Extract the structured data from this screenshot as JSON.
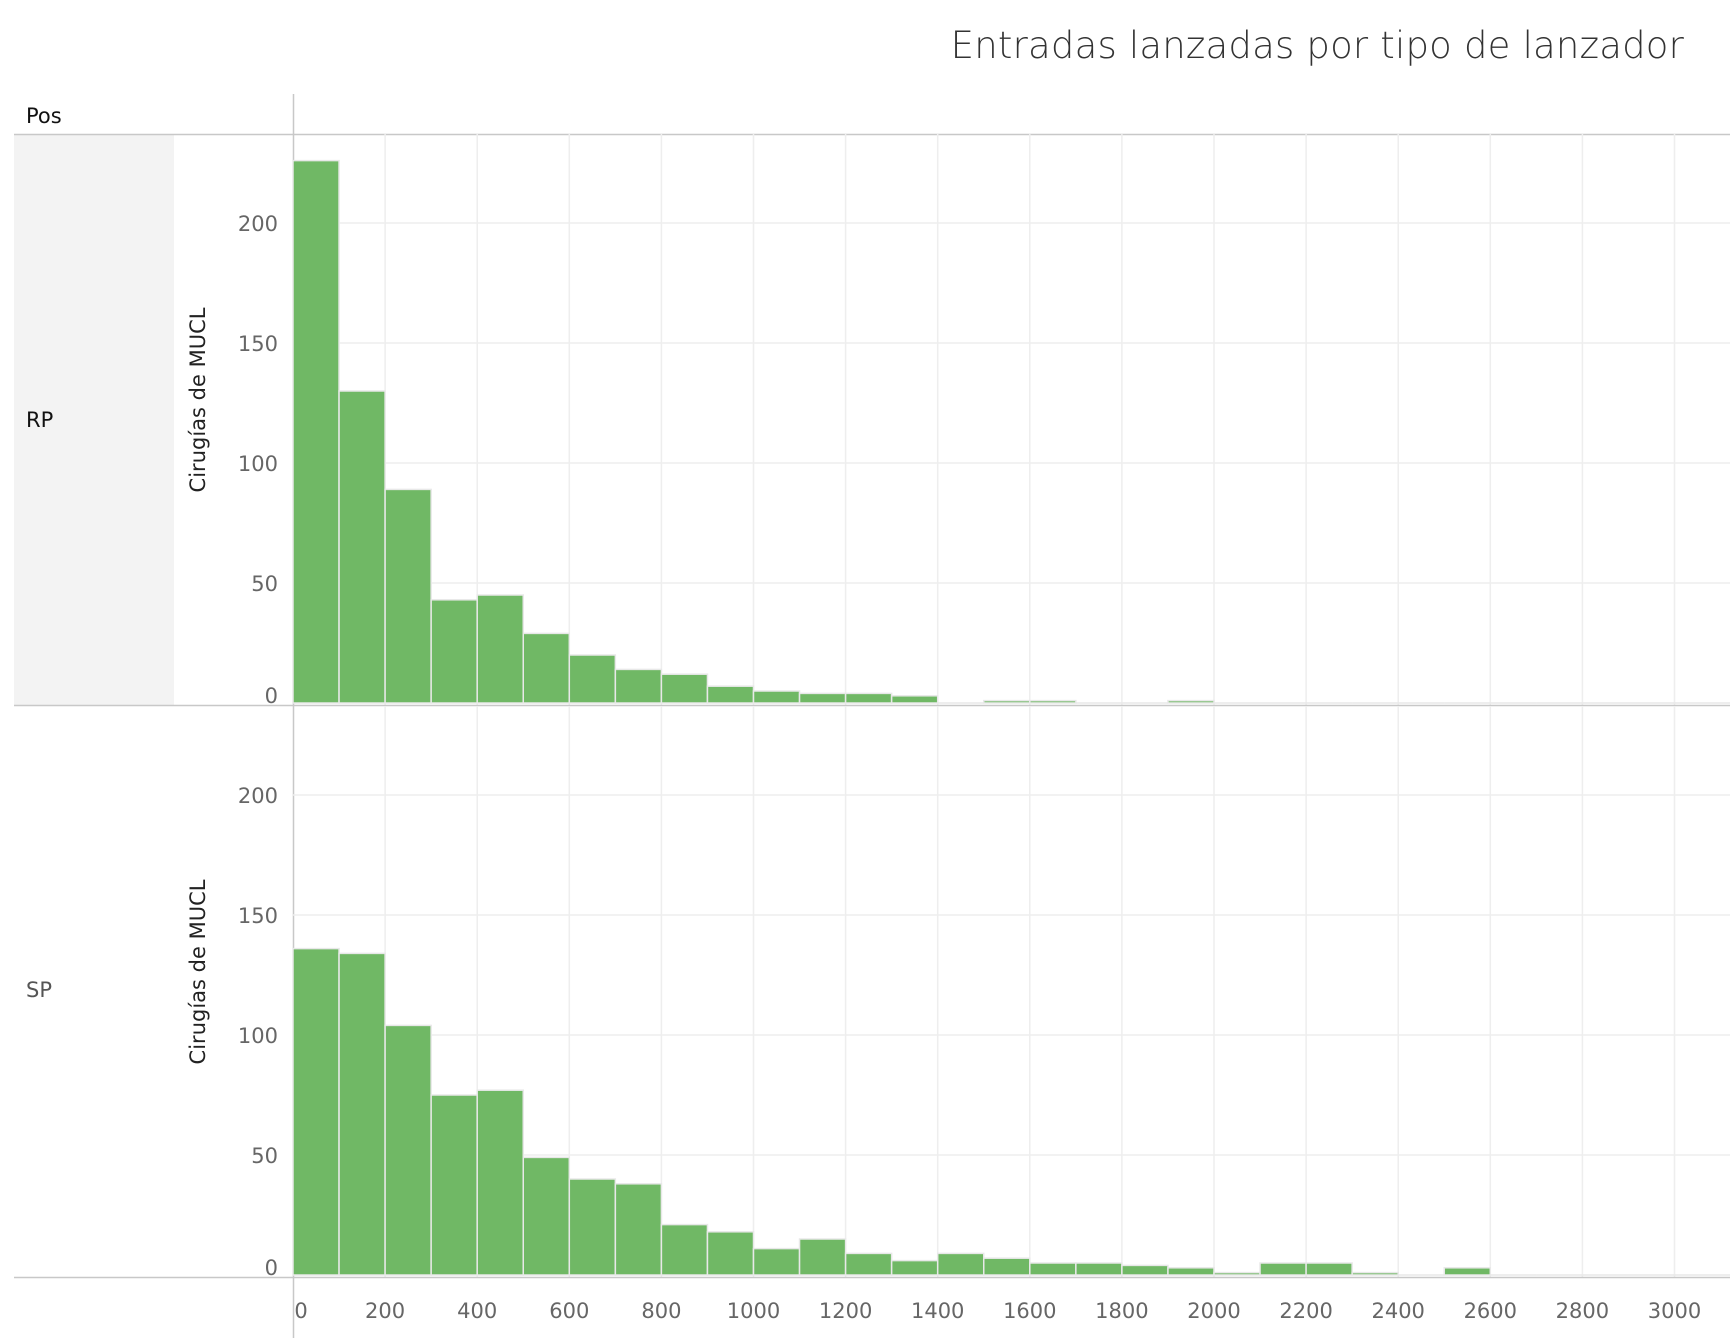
{
  "title": "Entradas lanzadas por tipo de lanzador",
  "row_header": "Pos",
  "colors": {
    "bar": "#70b865",
    "bar_edge": "#e8e8e8",
    "grid": "#eeeeee",
    "axis": "#c8c8c8",
    "band": "#f3f3f3"
  },
  "chart_data": {
    "type": "bar",
    "title": "Entradas lanzadas por tipo de lanzador",
    "bin_width": 100,
    "bin_starts": [
      0,
      100,
      200,
      300,
      400,
      500,
      600,
      700,
      800,
      900,
      1000,
      1100,
      1200,
      1300,
      1400,
      1500,
      1600,
      1700,
      1800,
      1900,
      2000,
      2100,
      2200,
      2300,
      2400,
      2500,
      2600,
      2700,
      2800,
      2900,
      3000,
      3100
    ],
    "xlim": [
      0,
      3100
    ],
    "xticks": [
      0,
      200,
      400,
      600,
      800,
      1000,
      1200,
      1400,
      1600,
      1800,
      2000,
      2200,
      2400,
      2600,
      2800,
      3000
    ],
    "ylim": [
      0,
      227
    ],
    "yticks": [
      0,
      50,
      100,
      150,
      200
    ],
    "ylabel": "Cirugías de MUCL",
    "grid": true,
    "panels": [
      {
        "name": "RP",
        "values": [
          226,
          130,
          89,
          43,
          45,
          29,
          20,
          14,
          12,
          7,
          5,
          4,
          4,
          3,
          0,
          1,
          1,
          0,
          0,
          1,
          0,
          0,
          0,
          0,
          0,
          0,
          0,
          0,
          0,
          0,
          0,
          0
        ]
      },
      {
        "name": "SP",
        "values": [
          136,
          134,
          104,
          75,
          77,
          49,
          40,
          38,
          21,
          18,
          11,
          15,
          9,
          6,
          9,
          7,
          5,
          5,
          4,
          3,
          1,
          5,
          5,
          1,
          0,
          3,
          0,
          0,
          0,
          0,
          0,
          0
        ]
      }
    ]
  }
}
